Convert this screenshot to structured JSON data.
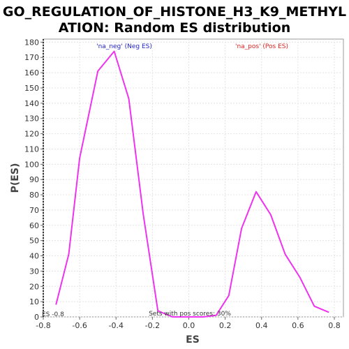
{
  "chart_data": {
    "type": "line",
    "title_lines": [
      "GO_REGULATION_OF_HISTONE_H3_K9_METHYL",
      "ATION: Random ES distribution"
    ],
    "xlabel": "ES",
    "ylabel": "P(ES)",
    "xlim": [
      -0.8,
      0.85
    ],
    "ylim": [
      0,
      182
    ],
    "x_ticks": [
      -0.8,
      -0.6,
      -0.4,
      -0.2,
      0.0,
      0.2,
      0.4,
      0.6,
      0.8
    ],
    "x_tick_labels": [
      "-0.8",
      "-0.6",
      "-0.4",
      "-0.2",
      "0.0",
      "0.2",
      "0.4",
      "0.6",
      "0.8"
    ],
    "y_ticks": [
      0,
      10,
      20,
      30,
      40,
      50,
      60,
      70,
      80,
      90,
      100,
      110,
      120,
      130,
      140,
      150,
      160,
      170,
      180
    ],
    "y_tick_labels": [
      "0",
      "10",
      "20",
      "30",
      "40",
      "50",
      "60",
      "70",
      "80",
      "90",
      "100",
      "110",
      "120",
      "130",
      "140",
      "150",
      "160",
      "170",
      "180"
    ],
    "grid": true,
    "series": [
      {
        "color": "#ee33ee",
        "x": [
          -0.73,
          -0.66,
          -0.6,
          -0.5,
          -0.41,
          -0.33,
          -0.25,
          -0.17,
          -0.09,
          0.0,
          0.08,
          0.15,
          0.22,
          0.29,
          0.37,
          0.45,
          0.53,
          0.61,
          0.69,
          0.77
        ],
        "y": [
          8,
          41,
          104,
          161,
          174,
          143,
          67,
          4,
          0,
          0,
          0,
          1,
          14,
          58,
          82,
          67,
          41,
          26,
          7,
          3
        ]
      }
    ],
    "legend": [
      {
        "text": "'na_neg' (Neg ES)",
        "color": "#2222cc"
      },
      {
        "text": "'na_pos' (Pos ES)",
        "color": "#dd2222"
      }
    ],
    "annotations": {
      "es_label": "ES -0.8",
      "pos_scores": "Sets with pos scores: 30%"
    }
  }
}
